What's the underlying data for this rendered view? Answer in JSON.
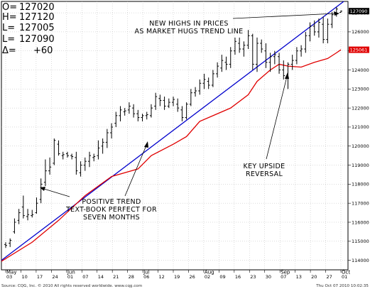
{
  "ohlc_box": {
    "open_label": "O=",
    "open_value": "127020",
    "high_label": "H=",
    "high_value": "127120",
    "low_label": "L=",
    "low_value": "127005",
    "close_label": "L=",
    "close_value": "127090",
    "delta_label": "Δ=",
    "delta_value": "+60"
  },
  "annotations": {
    "top_line1": "NEW HIGHS IN PRICES",
    "top_line2": "AS MARKET HUGS TREND LINE",
    "mid_line1": "KEY UPSIDE",
    "mid_line2": "REVERSAL",
    "bot_line1": "POSITIVE TREND",
    "bot_line2": "TEXT-BOOK PERFECT FOR",
    "bot_line3": "SEVEN MONTHS"
  },
  "footer": {
    "source": "Source: CQG, Inc. © 2010 All rights reserved worldwide. www.cqg.com",
    "timestamp": "Thu Oct 07 2010 10:02:35"
  },
  "colors": {
    "price_bars": "#000000",
    "trend_line": "#0000cc",
    "moving_average": "#e00000",
    "close_tag_bg": "#000000",
    "ma_tag_bg": "#e00000"
  },
  "chart_data": {
    "type": "line",
    "y_axis_side": "right",
    "ylim": [
      113500,
      127600
    ],
    "y_ticks": [
      114000,
      115000,
      116000,
      117000,
      118000,
      119000,
      120000,
      121000,
      122000,
      123000,
      124000,
      125000,
      126000,
      127000
    ],
    "y_tick_labels": [
      "114000",
      "115000",
      "116000",
      "117000",
      "118000",
      "119000",
      "120000",
      "121000",
      "122000",
      "123000",
      "124000",
      "125000",
      "126000",
      "127000"
    ],
    "close_tag": "127090",
    "ma_tag": "125061",
    "x_ticks": [
      "03",
      "10",
      "17",
      "24",
      "01",
      "07",
      "14",
      "21",
      "28",
      "06",
      "12",
      "19",
      "26",
      "02",
      "09",
      "16",
      "23",
      "30",
      "07",
      "13",
      "20",
      "27",
      "01"
    ],
    "months": [
      "May",
      "Jun",
      "Jul",
      "Aug",
      "Sep",
      "Oct"
    ],
    "bars": [
      [
        114830,
        114950,
        114650,
        114780
      ],
      [
        114900,
        115150,
        114700,
        115050
      ],
      [
        115500,
        116200,
        115400,
        116000
      ],
      [
        116100,
        116700,
        115900,
        116500
      ],
      [
        116800,
        117400,
        116200,
        116350
      ],
      [
        116300,
        116700,
        116100,
        116400
      ],
      [
        116350,
        116650,
        116250,
        116400
      ],
      [
        116500,
        117300,
        116450,
        117000
      ],
      [
        117200,
        118300,
        117000,
        118000
      ],
      [
        118100,
        119300,
        117900,
        118700
      ],
      [
        118700,
        119400,
        118500,
        118900
      ],
      [
        119100,
        120400,
        119000,
        120300
      ],
      [
        120100,
        120300,
        119500,
        119600
      ],
      [
        119500,
        119700,
        119300,
        119550
      ],
      [
        119600,
        119700,
        119400,
        119500
      ],
      [
        119500,
        119600,
        119300,
        119450
      ],
      [
        119400,
        119700,
        118500,
        118700
      ],
      [
        118600,
        119200,
        118400,
        119000
      ],
      [
        119000,
        119400,
        118700,
        119200
      ],
      [
        119200,
        119700,
        118900,
        119500
      ],
      [
        119400,
        119600,
        119200,
        119450
      ],
      [
        119500,
        120300,
        119300,
        119900
      ],
      [
        120000,
        120400,
        119600,
        120200
      ],
      [
        120200,
        120900,
        119900,
        120700
      ],
      [
        120700,
        121200,
        120400,
        121000
      ],
      [
        121200,
        121800,
        121000,
        121600
      ],
      [
        121600,
        122100,
        121300,
        121900
      ],
      [
        121800,
        122000,
        121600,
        121850
      ],
      [
        121900,
        122300,
        121700,
        122100
      ],
      [
        122000,
        122200,
        121500,
        121700
      ],
      [
        121700,
        121900,
        121300,
        121500
      ],
      [
        121500,
        121700,
        121300,
        121600
      ],
      [
        121600,
        121800,
        121400,
        121650
      ],
      [
        121600,
        122200,
        121500,
        122000
      ],
      [
        122100,
        122800,
        121900,
        122600
      ],
      [
        122500,
        122700,
        122100,
        122400
      ],
      [
        122400,
        122600,
        121900,
        122100
      ],
      [
        122100,
        122500,
        122000,
        122300
      ],
      [
        122300,
        122600,
        122100,
        122450
      ],
      [
        122200,
        122500,
        121800,
        122000
      ],
      [
        121900,
        122100,
        121300,
        121500
      ],
      [
        121500,
        122300,
        121400,
        122200
      ],
      [
        122200,
        123000,
        122100,
        122800
      ],
      [
        122800,
        123100,
        122600,
        122900
      ],
      [
        122900,
        123500,
        122700,
        123300
      ],
      [
        123300,
        123800,
        123000,
        123500
      ],
      [
        123400,
        123600,
        123000,
        123200
      ],
      [
        123200,
        124000,
        123100,
        123800
      ],
      [
        123800,
        124400,
        123600,
        124200
      ],
      [
        124100,
        124800,
        123900,
        124500
      ],
      [
        124400,
        124700,
        124000,
        124300
      ],
      [
        124300,
        125200,
        124100,
        125000
      ],
      [
        125000,
        125700,
        124800,
        125500
      ],
      [
        125400,
        125700,
        124900,
        125100
      ],
      [
        125100,
        125500,
        124700,
        125300
      ],
      [
        125300,
        126100,
        125100,
        125800
      ],
      [
        125800,
        125900,
        124000,
        124300
      ],
      [
        124300,
        125700,
        123900,
        125400
      ],
      [
        125400,
        125600,
        124900,
        125100
      ],
      [
        125000,
        125400,
        124100,
        124400
      ],
      [
        124400,
        124900,
        123900,
        124700
      ],
      [
        124700,
        125000,
        124300,
        124800
      ],
      [
        124700,
        124900,
        123800,
        124000
      ],
      [
        124000,
        124500,
        123500,
        123700
      ],
      [
        123700,
        124400,
        123000,
        124300
      ],
      [
        124300,
        124800,
        124000,
        124500
      ],
      [
        124500,
        125200,
        124300,
        125000
      ],
      [
        125000,
        125300,
        124700,
        125100
      ],
      [
        125100,
        126000,
        124900,
        125800
      ],
      [
        125800,
        126500,
        125500,
        126300
      ],
      [
        126300,
        126600,
        125800,
        126000
      ],
      [
        126000,
        126700,
        125700,
        126500
      ],
      [
        126400,
        126800,
        125400,
        125600
      ],
      [
        125600,
        126700,
        125400,
        126400
      ],
      [
        126400,
        127050,
        126200,
        126900
      ],
      [
        126900,
        127300,
        126800,
        127200
      ],
      [
        127020,
        127120,
        127005,
        127090
      ]
    ],
    "moving_average": [
      [
        0,
        113950
      ],
      [
        6,
        114950
      ],
      [
        12,
        116100
      ],
      [
        18,
        117400
      ],
      [
        24,
        118400
      ],
      [
        30,
        118800
      ],
      [
        33,
        119500
      ],
      [
        38,
        120100
      ],
      [
        41,
        120500
      ],
      [
        44,
        121300
      ],
      [
        47,
        121600
      ],
      [
        51,
        122000
      ],
      [
        55,
        122700
      ],
      [
        57,
        123400
      ],
      [
        60,
        124000
      ],
      [
        62,
        124300
      ],
      [
        64,
        124200
      ],
      [
        67,
        124150
      ],
      [
        70,
        124400
      ],
      [
        73,
        124600
      ],
      [
        75,
        124900
      ],
      [
        76,
        125061
      ]
    ],
    "trend_line": [
      [
        0,
        114000
      ],
      [
        76,
        127600
      ]
    ]
  }
}
